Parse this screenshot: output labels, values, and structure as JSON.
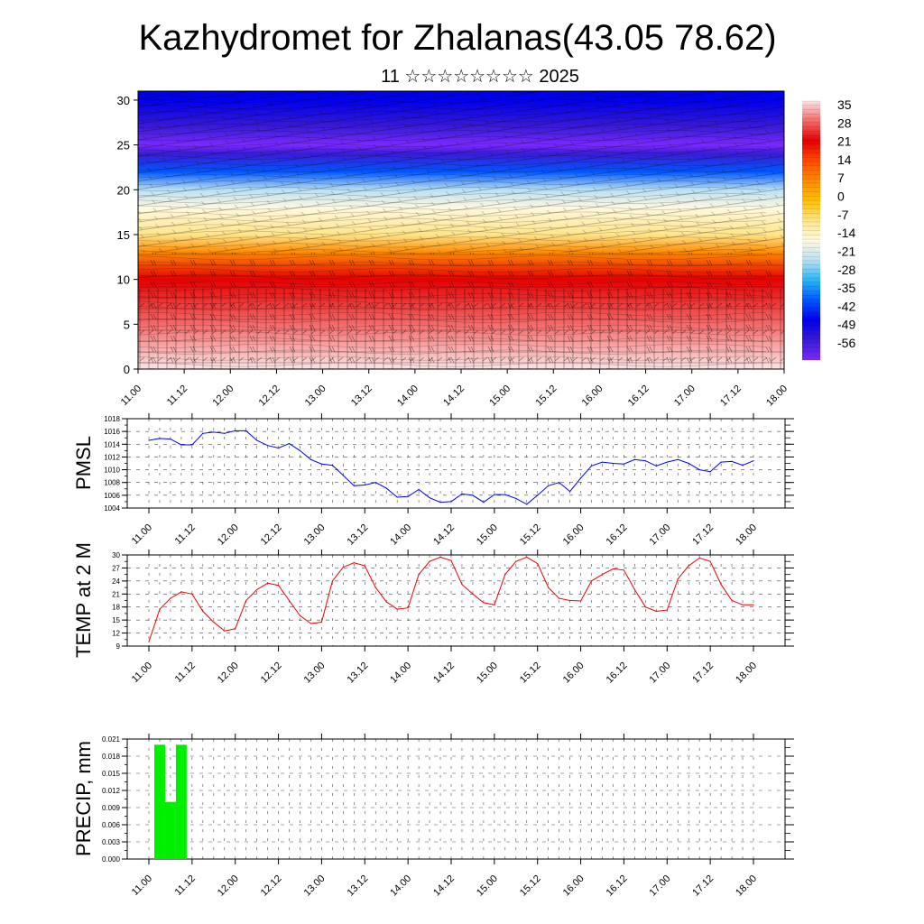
{
  "header": {
    "title": "Kazhydromet for Zhalanas(43.05 78.62)",
    "subtitle": "11 ☆☆☆☆☆☆☆☆ 2025"
  },
  "time_ticks": [
    "11.00",
    "11.12",
    "12.00",
    "12.12",
    "13.00",
    "13.12",
    "14.00",
    "14.12",
    "15.00",
    "15.12",
    "16.00",
    "16.12",
    "17.00",
    "17.12",
    "18.00"
  ],
  "chart_data": [
    {
      "type": "heatmap",
      "title": "",
      "ylim": [
        0,
        31
      ],
      "y_ticks": [
        0,
        5,
        10,
        15,
        20,
        25,
        30
      ],
      "x_ticks": [
        "11.00",
        "11.12",
        "12.00",
        "12.12",
        "13.00",
        "13.12",
        "14.00",
        "14.12",
        "15.00",
        "15.12",
        "16.00",
        "16.12",
        "17.00",
        "17.12",
        "18.00"
      ],
      "colorbar_labels": [
        "35",
        "28",
        "21",
        "14",
        "7",
        "0",
        "-7",
        "-14",
        "-21",
        "-28",
        "-35",
        "-42",
        "-49",
        "-56"
      ],
      "colorbar_colors": [
        "#fbe3e3",
        "#f56a6a",
        "#e60000",
        "#ff4a00",
        "#ff8a00",
        "#ffc000",
        "#ffe58a",
        "#fff9e0",
        "#b9e0f3",
        "#29b6f6",
        "#0057ff",
        "#0000ee",
        "#3a1bd6",
        "#7a2aff"
      ],
      "temperature_profile": {
        "levels": [
          0,
          5,
          10,
          13,
          15,
          18,
          20,
          22,
          24,
          25,
          27,
          30
        ],
        "values": [
          35,
          28,
          21,
          10,
          -7,
          -14,
          -21,
          -35,
          -49,
          -56,
          -49,
          -42
        ]
      }
    },
    {
      "type": "line",
      "ylabel": "PMSL",
      "ylim": [
        1004,
        1018
      ],
      "y_ticks": [
        "1018",
        "1016",
        "1014",
        "1012",
        "1010",
        "1008",
        "1006",
        "1004"
      ],
      "x_ticks": [
        "11.00",
        "11.12",
        "12.00",
        "12.12",
        "13.00",
        "13.12",
        "14.00",
        "14.12",
        "15.00",
        "15.12",
        "16.00",
        "16.12",
        "17.00",
        "17.12",
        "18.00"
      ],
      "color": "#0000ff",
      "hours": [
        0,
        3,
        6,
        9,
        12,
        15,
        18,
        21,
        24,
        27,
        30,
        33,
        36,
        39,
        42,
        45,
        48,
        51,
        54,
        57,
        60,
        63,
        66,
        69,
        72,
        75,
        78,
        81,
        84,
        87,
        90,
        93,
        96,
        99,
        102,
        105,
        108,
        111,
        114,
        117,
        120,
        123,
        126,
        129,
        132,
        135,
        138,
        141,
        144,
        147,
        150,
        153,
        156,
        159,
        162,
        165,
        168
      ],
      "values": [
        1014.6,
        1014.9,
        1014.8,
        1013.9,
        1013.9,
        1015.7,
        1015.9,
        1015.7,
        1016.1,
        1016.1,
        1014.6,
        1013.8,
        1013.4,
        1014.1,
        1013.0,
        1011.6,
        1010.9,
        1010.7,
        1009.1,
        1007.5,
        1007.6,
        1008.0,
        1007.1,
        1005.7,
        1005.8,
        1006.9,
        1005.6,
        1004.9,
        1005.0,
        1006.2,
        1006.0,
        1004.9,
        1006.1,
        1006.1,
        1005.5,
        1004.6,
        1006.0,
        1007.5,
        1008.0,
        1006.6,
        1008.7,
        1010.6,
        1011.2,
        1011.0,
        1010.9,
        1011.6,
        1011.4,
        1010.6,
        1011.2,
        1011.6,
        1011.0,
        1010.0,
        1009.7,
        1011.2,
        1011.3,
        1010.7,
        1011.4
      ]
    },
    {
      "type": "line",
      "ylabel": "TEMP at 2 M",
      "ylim": [
        9,
        30
      ],
      "y_ticks": [
        "30",
        "27",
        "24",
        "21",
        "18",
        "15",
        "12",
        "9"
      ],
      "x_ticks": [
        "11.00",
        "11.12",
        "12.00",
        "12.12",
        "13.00",
        "13.12",
        "14.00",
        "14.12",
        "15.00",
        "15.12",
        "16.00",
        "16.12",
        "17.00",
        "17.12",
        "18.00"
      ],
      "color": "#ee0000",
      "hours": [
        0,
        3,
        6,
        9,
        12,
        15,
        18,
        21,
        24,
        27,
        30,
        33,
        36,
        39,
        42,
        45,
        48,
        51,
        54,
        57,
        60,
        63,
        66,
        69,
        72,
        75,
        78,
        81,
        84,
        87,
        90,
        93,
        96,
        99,
        102,
        105,
        108,
        111,
        114,
        117,
        120,
        123,
        126,
        129,
        132,
        135,
        138,
        141,
        144,
        147,
        150,
        153,
        156,
        159,
        162,
        165,
        168
      ],
      "values": [
        10.0,
        17.5,
        20.0,
        21.5,
        21.0,
        17.0,
        14.5,
        12.5,
        13.0,
        19.5,
        22.0,
        23.5,
        23.0,
        19.5,
        16.0,
        14.2,
        14.5,
        24.0,
        27.2,
        28.2,
        27.5,
        22.5,
        19.2,
        17.5,
        17.8,
        25.5,
        28.5,
        29.5,
        28.7,
        23.2,
        21.0,
        19.0,
        18.5,
        25.5,
        28.5,
        29.5,
        28.0,
        22.5,
        20.0,
        19.5,
        19.4,
        24.0,
        25.5,
        26.8,
        26.5,
        22.0,
        18.0,
        17.0,
        17.3,
        24.5,
        27.5,
        29.3,
        28.5,
        23.2,
        19.5,
        18.5,
        18.5
      ]
    },
    {
      "type": "bar",
      "ylabel": "PRECIP, mm",
      "ylim": [
        0,
        0.021
      ],
      "y_ticks": [
        "0.021",
        "0.018",
        "0.015",
        "0.012",
        "0.009",
        "0.006",
        "0.003",
        "0.000"
      ],
      "x_ticks": [
        "11.00",
        "11.12",
        "12.00",
        "12.12",
        "13.00",
        "13.12",
        "14.00",
        "14.12",
        "15.00",
        "15.12",
        "16.00",
        "16.12",
        "17.00",
        "17.12",
        "18.00"
      ],
      "color": "#00ee00",
      "hours": [
        3,
        6,
        9
      ],
      "values": [
        0.02,
        0.01,
        0.02
      ]
    }
  ]
}
